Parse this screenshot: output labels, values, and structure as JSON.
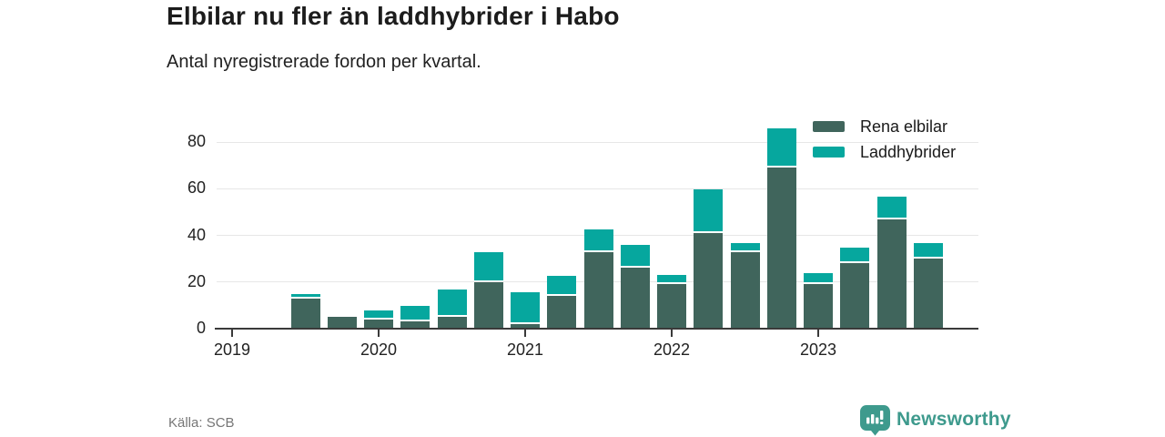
{
  "header": {
    "title": "Elbilar nu fler än laddhybrider i Habo",
    "subtitle": "Antal nyregistrerade fordon per kvartal."
  },
  "chart_data": {
    "type": "bar",
    "stacked": true,
    "title": "Elbilar nu fler än laddhybrider i Habo",
    "ylabel": "",
    "xlabel": "",
    "categories": [
      "2019 Q1",
      "2019 Q2",
      "2019 Q3",
      "2019 Q4",
      "2020 Q1",
      "2020 Q2",
      "2020 Q3",
      "2020 Q4",
      "2021 Q1",
      "2021 Q2",
      "2021 Q3",
      "2021 Q4",
      "2022 Q1",
      "2022 Q2",
      "2022 Q3",
      "2022 Q4",
      "2023 Q1",
      "2023 Q2",
      "2023 Q3",
      "2023 Q4"
    ],
    "series": [
      {
        "name": "Rena elbilar",
        "color": "#40655c",
        "values": [
          0,
          0,
          13,
          5,
          4,
          3,
          5,
          20,
          2,
          14,
          33,
          26,
          19,
          41,
          33,
          69,
          19,
          28,
          47,
          30
        ]
      },
      {
        "name": "Laddhybrider",
        "color": "#06a79e",
        "values": [
          0,
          0,
          1,
          0,
          3,
          6,
          11,
          12,
          13,
          8,
          9,
          9,
          3,
          18,
          3,
          16,
          4,
          6,
          9,
          6
        ]
      }
    ],
    "x_tick_labels": [
      "2019",
      "2020",
      "2021",
      "2022",
      "2023"
    ],
    "yticks": [
      0,
      20,
      40,
      60,
      80
    ],
    "ylim": [
      0,
      88
    ],
    "grid": "horizontal",
    "legend_position": "top-right"
  },
  "footer": {
    "source": "Källa: SCB",
    "brand": "Newsworthy",
    "brand_color": "#3e9a8d"
  }
}
